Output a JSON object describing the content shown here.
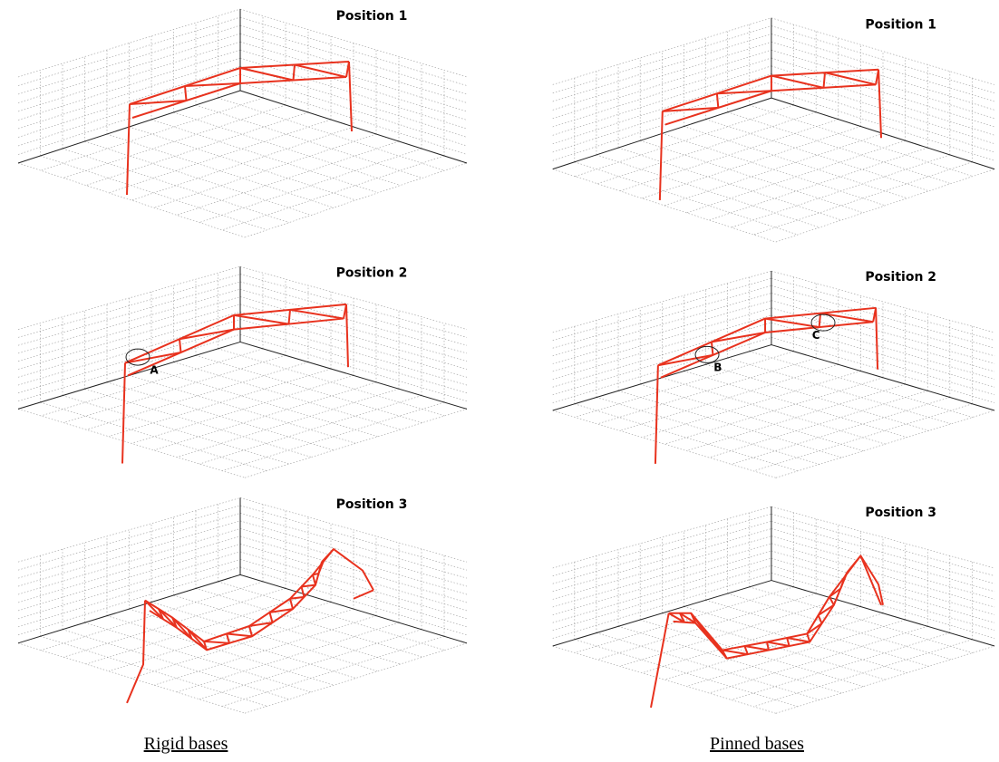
{
  "columns": [
    {
      "caption": "Rigid bases",
      "panels": [
        {
          "title": "Position 1"
        },
        {
          "title": "Position 2",
          "annotations": [
            "A"
          ]
        },
        {
          "title": "Position 3"
        }
      ]
    },
    {
      "caption": "Pinned bases",
      "panels": [
        {
          "title": "Position 1"
        },
        {
          "title": "Position 2",
          "annotations": [
            "B",
            "C"
          ]
        },
        {
          "title": "Position 3"
        }
      ]
    }
  ]
}
